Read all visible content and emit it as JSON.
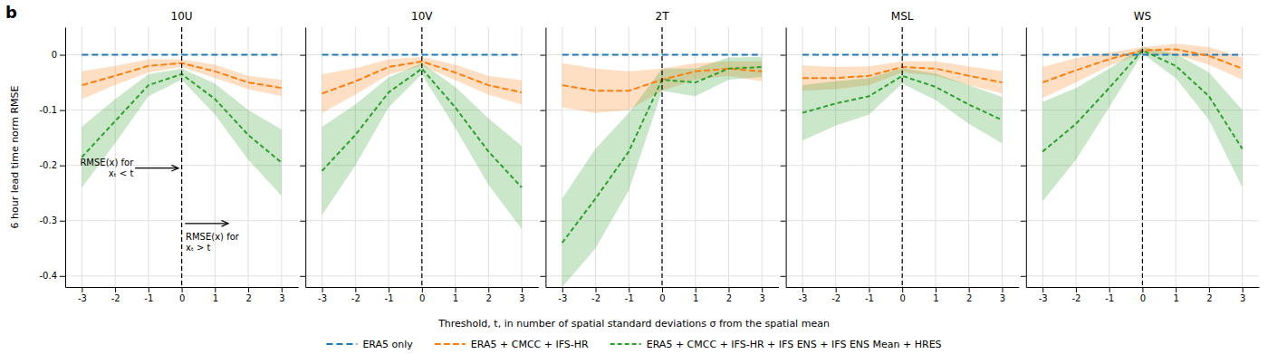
{
  "chart_data": [
    {
      "type": "line",
      "title": "10U",
      "x": [
        -3,
        -2,
        -1,
        0,
        1,
        2,
        3
      ],
      "xlim": [
        -3.5,
        3.5
      ],
      "ylim": [
        -0.42,
        0.05
      ],
      "xticks": [
        -3,
        -2,
        -1,
        0,
        1,
        2,
        3
      ],
      "yticks": [
        0,
        -0.1,
        -0.2,
        -0.3,
        -0.4
      ],
      "grid": true,
      "legend": "bottom",
      "vline": 0,
      "ylabel": "6 hour lead time norm RMSE",
      "xlabel": "Threshold, t, in number of spatial standard deviations σ from the spatial mean",
      "annotations": [
        {
          "text": [
            "RMSE(x) for",
            "xₜ < t"
          ],
          "x": -1.45,
          "y": -0.185,
          "arrow_from": [
            -1.4,
            -0.205
          ],
          "arrow_to": [
            -0.1,
            -0.205
          ]
        },
        {
          "text": [
            "RMSE(x) for",
            "xₜ > t"
          ],
          "x": 0.12,
          "y": -0.32,
          "arrow_from": [
            0.1,
            -0.305
          ],
          "arrow_to": [
            1.4,
            -0.305
          ]
        },
        {
          "text": [
            "b"
          ]
        }
      ],
      "series": [
        {
          "name": "ERA5 only",
          "line_style": "dashed",
          "values": [
            0,
            0,
            0,
            0,
            0,
            0,
            0
          ]
        },
        {
          "name": "ERA5 + CMCC + IFS-HR",
          "line_style": "dashed",
          "values": [
            -0.055,
            -0.038,
            -0.02,
            -0.015,
            -0.03,
            -0.05,
            -0.06
          ],
          "lo": [
            -0.08,
            -0.055,
            -0.032,
            -0.022,
            -0.042,
            -0.062,
            -0.075
          ],
          "hi": [
            -0.03,
            -0.02,
            -0.008,
            -0.008,
            -0.018,
            -0.038,
            -0.045
          ]
        },
        {
          "name": "ERA5 + CMCC + IFS-HR + IFS ENS + IFS ENS Mean + HRES",
          "line_style": "dashed",
          "values": [
            -0.185,
            -0.12,
            -0.055,
            -0.035,
            -0.08,
            -0.145,
            -0.195
          ],
          "lo": [
            -0.24,
            -0.16,
            -0.075,
            -0.045,
            -0.108,
            -0.19,
            -0.255
          ],
          "hi": [
            -0.13,
            -0.08,
            -0.035,
            -0.025,
            -0.052,
            -0.1,
            -0.135
          ]
        }
      ]
    },
    {
      "type": "line",
      "title": "10V",
      "x": [
        -3,
        -2,
        -1,
        0,
        1,
        2,
        3
      ],
      "xlim": [
        -3.5,
        3.5
      ],
      "ylim": [
        -0.42,
        0.05
      ],
      "xticks": [
        -3,
        -2,
        -1,
        0,
        1,
        2,
        3
      ],
      "yticks": [
        0,
        -0.1,
        -0.2,
        -0.3,
        -0.4
      ],
      "grid": true,
      "tick_labels": "x",
      "vline": 0,
      "series": [
        {
          "name": "ERA5 only",
          "line_style": "dashed",
          "values": [
            0,
            0,
            0,
            0,
            0,
            0,
            0
          ]
        },
        {
          "name": "ERA5 + CMCC + IFS-HR",
          "line_style": "dashed",
          "values": [
            -0.07,
            -0.048,
            -0.022,
            -0.012,
            -0.032,
            -0.055,
            -0.068
          ],
          "lo": [
            -0.105,
            -0.072,
            -0.036,
            -0.02,
            -0.046,
            -0.072,
            -0.09
          ],
          "hi": [
            -0.035,
            -0.024,
            -0.008,
            -0.004,
            -0.018,
            -0.038,
            -0.046
          ]
        },
        {
          "name": "ERA5 + CMCC + IFS-HR + IFS ENS + IFS ENS Mean + HRES",
          "line_style": "dashed",
          "values": [
            -0.21,
            -0.145,
            -0.068,
            -0.025,
            -0.095,
            -0.175,
            -0.24
          ],
          "lo": [
            -0.29,
            -0.2,
            -0.095,
            -0.035,
            -0.132,
            -0.235,
            -0.315
          ],
          "hi": [
            -0.13,
            -0.09,
            -0.041,
            -0.015,
            -0.058,
            -0.115,
            -0.165
          ]
        }
      ]
    },
    {
      "type": "line",
      "title": "2T",
      "x": [
        -3,
        -2,
        -1,
        0,
        1,
        2,
        3
      ],
      "xlim": [
        -3.5,
        3.5
      ],
      "ylim": [
        -0.42,
        0.05
      ],
      "xticks": [
        -3,
        -2,
        -1,
        0,
        1,
        2,
        3
      ],
      "yticks": [
        0,
        -0.1,
        -0.2,
        -0.3,
        -0.4
      ],
      "grid": true,
      "tick_labels": "x",
      "vline": 0,
      "series": [
        {
          "name": "ERA5 only",
          "line_style": "dashed",
          "values": [
            0,
            0,
            0,
            0,
            0,
            0,
            0
          ]
        },
        {
          "name": "ERA5 + CMCC + IFS-HR",
          "line_style": "dashed",
          "values": [
            -0.055,
            -0.065,
            -0.065,
            -0.045,
            -0.03,
            -0.025,
            -0.03
          ],
          "lo": [
            -0.095,
            -0.105,
            -0.1,
            -0.065,
            -0.045,
            -0.038,
            -0.048
          ],
          "hi": [
            -0.015,
            -0.025,
            -0.03,
            -0.025,
            -0.015,
            -0.012,
            -0.012
          ]
        },
        {
          "name": "ERA5 + CMCC + IFS-HR + IFS ENS + IFS ENS Mean + HRES",
          "line_style": "dashed",
          "values": [
            -0.34,
            -0.26,
            -0.175,
            -0.045,
            -0.05,
            -0.025,
            -0.022
          ],
          "lo": [
            -0.42,
            -0.35,
            -0.245,
            -0.065,
            -0.075,
            -0.045,
            -0.04
          ],
          "hi": [
            -0.26,
            -0.17,
            -0.105,
            -0.025,
            -0.025,
            -0.005,
            -0.004
          ]
        }
      ]
    },
    {
      "type": "line",
      "title": "MSL",
      "x": [
        -3,
        -2,
        -1,
        0,
        1,
        2,
        3
      ],
      "xlim": [
        -3.5,
        3.5
      ],
      "ylim": [
        -0.42,
        0.05
      ],
      "xticks": [
        -3,
        -2,
        -1,
        0,
        1,
        2,
        3
      ],
      "yticks": [
        0,
        -0.1,
        -0.2,
        -0.3,
        -0.4
      ],
      "grid": true,
      "tick_labels": "x",
      "vline": 0,
      "series": [
        {
          "name": "ERA5 only",
          "line_style": "dashed",
          "values": [
            0,
            0,
            0,
            0,
            0,
            0,
            0
          ]
        },
        {
          "name": "ERA5 + CMCC + IFS-HR",
          "line_style": "dashed",
          "values": [
            -0.042,
            -0.042,
            -0.038,
            -0.022,
            -0.025,
            -0.038,
            -0.05
          ],
          "lo": [
            -0.065,
            -0.062,
            -0.055,
            -0.032,
            -0.038,
            -0.055,
            -0.07
          ],
          "hi": [
            -0.019,
            -0.022,
            -0.021,
            -0.012,
            -0.012,
            -0.021,
            -0.03
          ]
        },
        {
          "name": "ERA5 + CMCC + IFS-HR + IFS ENS + IFS ENS Mean + HRES",
          "line_style": "dashed",
          "values": [
            -0.105,
            -0.088,
            -0.075,
            -0.038,
            -0.058,
            -0.09,
            -0.118
          ],
          "lo": [
            -0.155,
            -0.128,
            -0.108,
            -0.052,
            -0.082,
            -0.125,
            -0.16
          ],
          "hi": [
            -0.055,
            -0.048,
            -0.042,
            -0.024,
            -0.034,
            -0.055,
            -0.076
          ]
        }
      ]
    },
    {
      "type": "line",
      "title": "WS",
      "x": [
        -3,
        -2,
        -1,
        0,
        1,
        2,
        3
      ],
      "xlim": [
        -3.5,
        3.5
      ],
      "ylim": [
        -0.42,
        0.05
      ],
      "xticks": [
        -3,
        -2,
        -1,
        0,
        1,
        2,
        3
      ],
      "yticks": [
        0,
        -0.1,
        -0.2,
        -0.3,
        -0.4
      ],
      "grid": true,
      "tick_labels": "x",
      "vline": 0,
      "series": [
        {
          "name": "ERA5 only",
          "line_style": "dashed",
          "values": [
            0,
            0,
            0,
            0,
            0,
            0,
            0
          ]
        },
        {
          "name": "ERA5 + CMCC + IFS-HR",
          "line_style": "dashed",
          "values": [
            -0.05,
            -0.028,
            -0.008,
            0.008,
            0.01,
            -0.002,
            -0.025
          ],
          "lo": [
            -0.078,
            -0.05,
            -0.02,
            0.002,
            0.0,
            -0.018,
            -0.045
          ],
          "hi": [
            -0.022,
            -0.006,
            0.004,
            0.014,
            0.02,
            0.014,
            -0.005
          ]
        },
        {
          "name": "ERA5 + CMCC + IFS-HR + IFS ENS + IFS ENS Mean + HRES",
          "line_style": "dashed",
          "values": [
            -0.175,
            -0.125,
            -0.06,
            0.008,
            -0.02,
            -0.075,
            -0.17
          ],
          "lo": [
            -0.265,
            -0.19,
            -0.095,
            0.002,
            -0.042,
            -0.118,
            -0.24
          ],
          "hi": [
            -0.085,
            -0.06,
            -0.025,
            0.014,
            0.002,
            -0.032,
            -0.1
          ]
        }
      ]
    }
  ]
}
